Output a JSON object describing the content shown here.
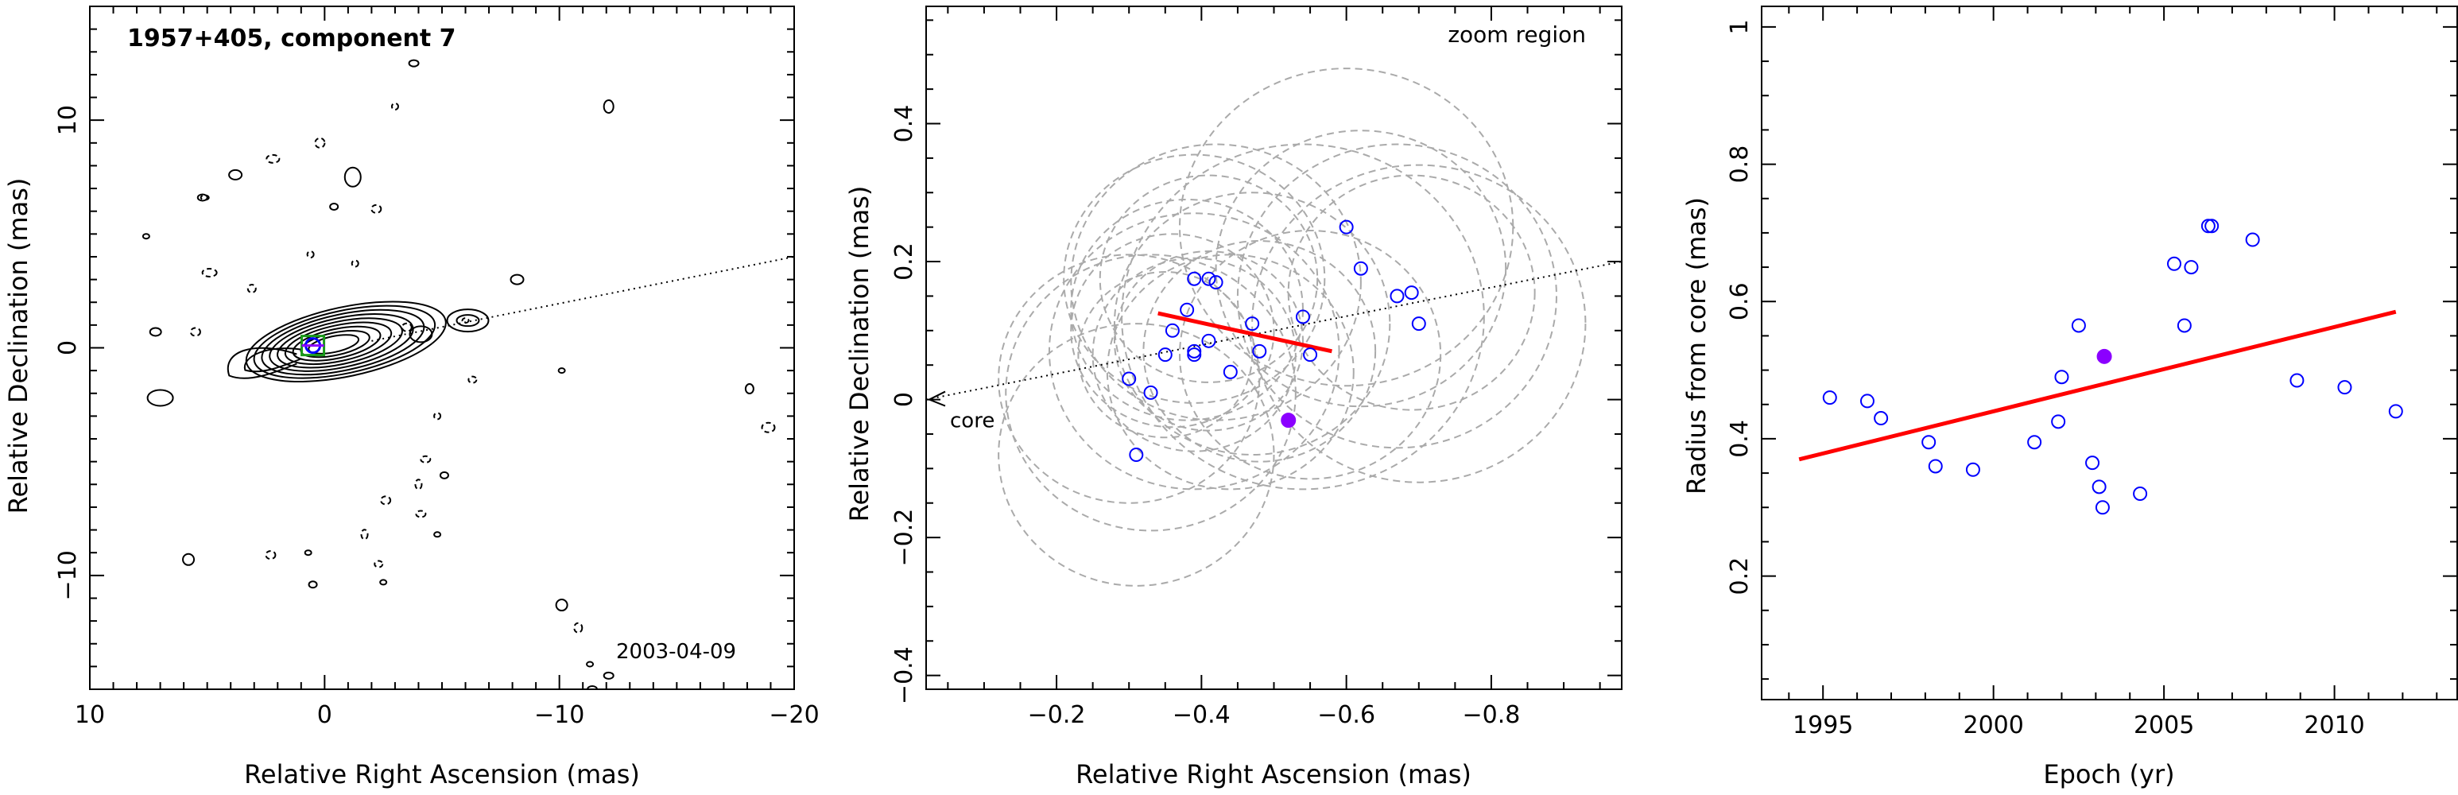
{
  "chart_data": [
    {
      "type": "contour",
      "title": "1957+405, component 7",
      "annotation": "2003-04-09",
      "xlabel": "Relative Right Ascension (mas)",
      "ylabel": "Relative Declination (mas)",
      "xlim": [
        10,
        -20
      ],
      "ylim": [
        -15,
        15
      ],
      "xticks": [
        10,
        0,
        -10,
        -20
      ],
      "yticks": [
        -10,
        0,
        10
      ],
      "jet_direction_line": [
        [
          -2,
          0.3
        ],
        [
          -20,
          4.0
        ]
      ],
      "core_position": [
        0,
        0
      ],
      "component_position": [
        0.5,
        0.1
      ]
    },
    {
      "type": "scatter",
      "title": "zoom region",
      "xlabel": "Relative Right Ascension (mas)",
      "ylabel": "Relative Declination (mas)",
      "xlim": [
        -0.02,
        -0.98
      ],
      "ylim": [
        -0.42,
        0.57
      ],
      "xticks": [
        -0.2,
        -0.4,
        -0.6,
        -0.8
      ],
      "yticks": [
        -0.4,
        -0.2,
        0,
        0.2,
        0.4
      ],
      "core_label": "core",
      "jet_direction_line": [
        [
          -0.02,
          0.0
        ],
        [
          -0.98,
          0.2
        ]
      ],
      "series": [
        {
          "name": "",
          "marker": "open-circle",
          "color": "#0000ff",
          "x": [
            -0.6,
            -0.39,
            -0.41,
            -0.42,
            -0.62,
            -0.67,
            -0.69,
            -0.7,
            -0.38,
            -0.36,
            -0.54,
            -0.41,
            -0.47,
            -0.48,
            -0.35,
            -0.39,
            -0.39,
            -0.55,
            -0.3,
            -0.33,
            -0.44,
            -0.31
          ],
          "y": [
            0.25,
            0.175,
            0.175,
            0.17,
            0.19,
            0.15,
            0.155,
            0.11,
            0.13,
            0.1,
            0.12,
            0.085,
            0.11,
            0.07,
            0.065,
            0.07,
            0.065,
            0.065,
            0.03,
            0.01,
            0.04,
            -0.08
          ]
        },
        {
          "name": "",
          "marker": "filled-circle",
          "color": "#8b00ff",
          "x": [
            -0.52
          ],
          "y": [
            -0.03
          ]
        }
      ],
      "fit_line": {
        "color": "#ff0000",
        "x": [
          -0.34,
          -0.58
        ],
        "y": [
          0.125,
          0.07
        ]
      },
      "uncertainty_circles": [
        {
          "cx": -0.6,
          "cy": 0.25,
          "r": 0.23
        },
        {
          "cx": -0.39,
          "cy": 0.175,
          "r": 0.18
        },
        {
          "cx": -0.41,
          "cy": 0.175,
          "r": 0.15
        },
        {
          "cx": -0.42,
          "cy": 0.17,
          "r": 0.2
        },
        {
          "cx": -0.62,
          "cy": 0.19,
          "r": 0.2
        },
        {
          "cx": -0.67,
          "cy": 0.15,
          "r": 0.22
        },
        {
          "cx": -0.69,
          "cy": 0.155,
          "r": 0.17
        },
        {
          "cx": -0.7,
          "cy": 0.11,
          "r": 0.23
        },
        {
          "cx": -0.38,
          "cy": 0.13,
          "r": 0.16
        },
        {
          "cx": -0.36,
          "cy": 0.1,
          "r": 0.14
        },
        {
          "cx": -0.54,
          "cy": 0.12,
          "r": 0.25
        },
        {
          "cx": -0.41,
          "cy": 0.085,
          "r": 0.13
        },
        {
          "cx": -0.47,
          "cy": 0.11,
          "r": 0.19
        },
        {
          "cx": -0.48,
          "cy": 0.07,
          "r": 0.16
        },
        {
          "cx": -0.35,
          "cy": 0.065,
          "r": 0.12
        },
        {
          "cx": -0.39,
          "cy": 0.07,
          "r": 0.2
        },
        {
          "cx": -0.39,
          "cy": 0.065,
          "r": 0.14
        },
        {
          "cx": -0.55,
          "cy": 0.065,
          "r": 0.18
        },
        {
          "cx": -0.3,
          "cy": 0.03,
          "r": 0.18
        },
        {
          "cx": -0.33,
          "cy": 0.01,
          "r": 0.2
        },
        {
          "cx": -0.44,
          "cy": 0.04,
          "r": 0.17
        },
        {
          "cx": -0.31,
          "cy": -0.08,
          "r": 0.19
        }
      ]
    },
    {
      "type": "scatter",
      "xlabel": "Epoch (yr)",
      "ylabel": "Radius from core (mas)",
      "xlim": [
        1993.2,
        2013.6
      ],
      "ylim": [
        0.02,
        1.03
      ],
      "xticks": [
        1995,
        2000,
        2005,
        2010
      ],
      "yticks": [
        0.2,
        0.4,
        0.6,
        0.8,
        1
      ],
      "series": [
        {
          "name": "",
          "marker": "open-circle",
          "color": "#0000ff",
          "x": [
            1995.2,
            1996.3,
            1996.7,
            1998.1,
            1998.3,
            1999.4,
            2001.2,
            2001.9,
            2002.0,
            2002.5,
            2002.9,
            2003.1,
            2003.2,
            2004.3,
            2005.3,
            2005.6,
            2005.8,
            2006.3,
            2006.4,
            2007.6,
            2008.9,
            2010.3,
            2011.8
          ],
          "y": [
            0.46,
            0.455,
            0.43,
            0.395,
            0.36,
            0.355,
            0.395,
            0.425,
            0.49,
            0.565,
            0.365,
            0.33,
            0.3,
            0.32,
            0.655,
            0.565,
            0.65,
            0.71,
            0.71,
            0.69,
            0.485,
            0.475,
            0.44
          ]
        },
        {
          "name": "",
          "marker": "filled-circle",
          "color": "#8b00ff",
          "x": [
            2003.25
          ],
          "y": [
            0.52
          ]
        }
      ],
      "fit_line": {
        "color": "#ff0000",
        "x": [
          1994.3,
          2011.8
        ],
        "y": [
          0.37,
          0.585
        ]
      }
    }
  ]
}
